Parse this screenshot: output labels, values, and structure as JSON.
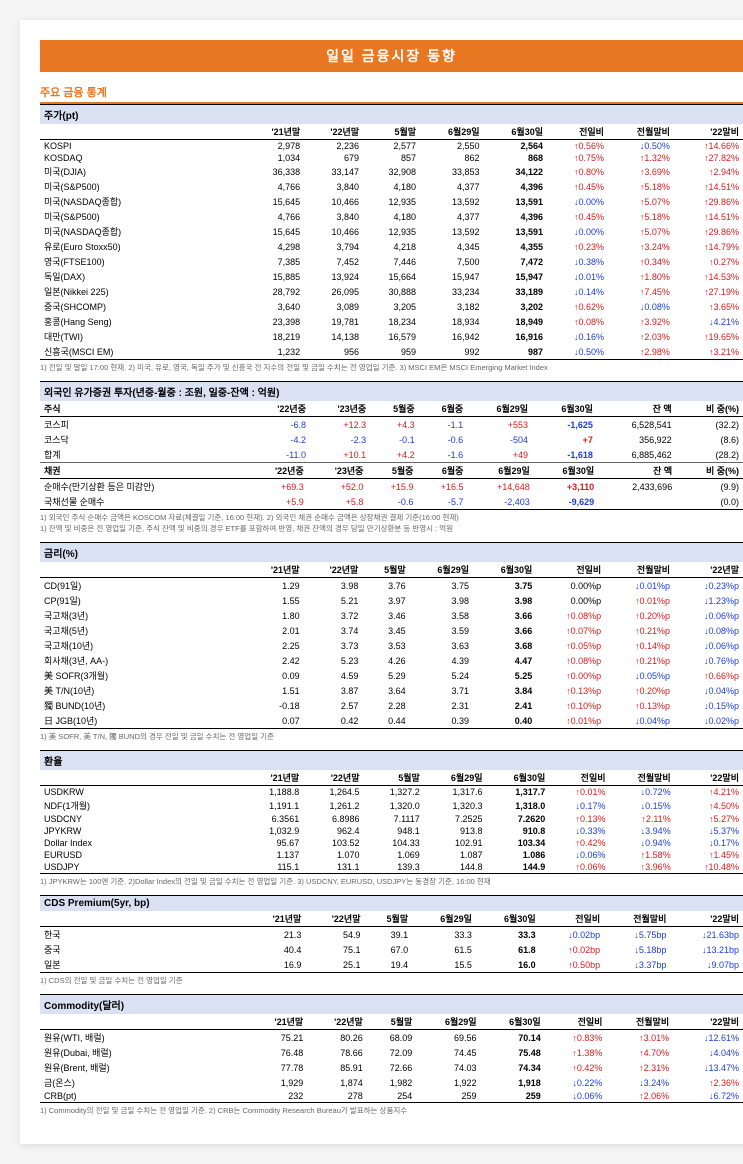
{
  "page_title": "일일 금융시장 동향",
  "sec1_title": "주요 금융 통계",
  "colors": {
    "accent": "#e87722",
    "header_bg": "#d9e1f2",
    "up": "#d91c1c",
    "down": "#1c3ed9"
  },
  "t1": {
    "title": "주가(pt)",
    "cols": [
      "'21년말",
      "'22년말",
      "5월말",
      "6월29일",
      "6월30일",
      "전일비",
      "전월말비",
      "'22말비"
    ],
    "rows": [
      [
        "KOSPI",
        "2,978",
        "2,236",
        "2,577",
        "2,550",
        "2,564",
        "↑0.56%",
        "↓0.50%",
        "↑14.66%"
      ],
      [
        "KOSDAQ",
        "1,034",
        "679",
        "857",
        "862",
        "868",
        "↑0.75%",
        "↑1.32%",
        "↑27.82%"
      ],
      [
        "미국(DJIA)",
        "36,338",
        "33,147",
        "32,908",
        "33,853",
        "34,122",
        "↑0.80%",
        "↑3.69%",
        "↑2.94%"
      ],
      [
        "미국(S&P500)",
        "4,766",
        "3,840",
        "4,180",
        "4,377",
        "4,396",
        "↑0.45%",
        "↑5.18%",
        "↑14.51%"
      ],
      [
        "미국(NASDAQ종합)",
        "15,645",
        "10,466",
        "12,935",
        "13,592",
        "13,591",
        "↓0.00%",
        "↑5.07%",
        "↑29.86%"
      ],
      [
        "미국(S&P500)",
        "4,766",
        "3,840",
        "4,180",
        "4,377",
        "4,396",
        "↑0.45%",
        "↑5.18%",
        "↑14.51%"
      ],
      [
        "미국(NASDAQ종합)",
        "15,645",
        "10,466",
        "12,935",
        "13,592",
        "13,591",
        "↓0.00%",
        "↑5.07%",
        "↑29.86%"
      ],
      [
        "유로(Euro Stoxx50)",
        "4,298",
        "3,794",
        "4,218",
        "4,345",
        "4,355",
        "↑0.23%",
        "↑3.24%",
        "↑14.79%"
      ],
      [
        "영국(FTSE100)",
        "7,385",
        "7,452",
        "7,446",
        "7,500",
        "7,472",
        "↓0.38%",
        "↑0.34%",
        "↑0.27%"
      ],
      [
        "독일(DAX)",
        "15,885",
        "13,924",
        "15,664",
        "15,947",
        "15,947",
        "↓0.01%",
        "↑1.80%",
        "↑14.53%"
      ],
      [
        "일본(Nikkei 225)",
        "28,792",
        "26,095",
        "30,888",
        "33,234",
        "33,189",
        "↓0.14%",
        "↑7.45%",
        "↑27.19%"
      ],
      [
        "중국(SHCOMP)",
        "3,640",
        "3,089",
        "3,205",
        "3,182",
        "3,202",
        "↑0.62%",
        "↓0.08%",
        "↑3.65%"
      ],
      [
        "홍콩(Hang Seng)",
        "23,398",
        "19,781",
        "18,234",
        "18,934",
        "18,949",
        "↑0.08%",
        "↑3.92%",
        "↓4.21%"
      ],
      [
        "대만(TWI)",
        "18,219",
        "14,138",
        "16,579",
        "16,942",
        "16,916",
        "↓0.16%",
        "↑2.03%",
        "↑19.65%"
      ],
      [
        "신흥국(MSCI EM)",
        "1,232",
        "956",
        "959",
        "992",
        "987",
        "↓0.50%",
        "↑2.98%",
        "↑3.21%"
      ]
    ],
    "foot": "1) 전일 및 말일 17:00 현재. 2) 미국, 유로, 영국, 독일 주가 및 신흥국 전 지수의 전일 및 금일 수치는 전 영업일 기준. 3) MSCI EM은 MSCI Emerging Market Index"
  },
  "t2": {
    "title": "외국인 유가증권 투자(년중-월중 : 조원, 일중-잔액 : 억원)",
    "cols1": [
      "주식",
      "'22년중",
      "'23년중",
      "5월중",
      "6월중",
      "6월29일",
      "6월30일",
      "잔 액",
      "비 중(%)"
    ],
    "rows1": [
      [
        "코스피",
        "-6.8",
        "+12.3",
        "+4.3",
        "-1.1",
        "+553",
        "-1,625",
        "6,528,541",
        "(32.2)"
      ],
      [
        "코스닥",
        "-4.2",
        "-2.3",
        "-0.1",
        "-0.6",
        "-504",
        "+7",
        "356,922",
        "(8.6)"
      ],
      [
        "합계",
        "-11.0",
        "+10.1",
        "+4.2",
        "-1.6",
        "+49",
        "-1,618",
        "6,885,462",
        "(28.2)"
      ]
    ],
    "cols2": [
      "채권",
      "'22년중",
      "'23년중",
      "5월중",
      "6월중",
      "6월29일",
      "6월30일",
      "잔 액",
      "비 중(%)"
    ],
    "rows2": [
      [
        "순매수(만기상환 등은 미감안)",
        "+69.3",
        "+52.0",
        "+15.9",
        "+16.5",
        "+14,648",
        "+3,110",
        "2,433,696",
        "(9.9)"
      ],
      [
        "국채선물 순매수",
        "+5.9",
        "+5.8",
        "-0.6",
        "-5.7",
        "-2,403",
        "-9,629",
        "",
        "(0.0)"
      ]
    ],
    "foot": "1) 외국인 주식 순매수 금액은 KOSCOM 자료(체결일 기준, 16:00 현재). 2) 외국인 채권 순매수 금액은 상장채권 결제 기준(16:00 현재)\n1) 잔액 및 비중은 전 영업일 기준, 주식 잔액 및 비중의 경우 ETF를 포함하여 반영, 채권 잔액의 경우 당일 만기상환분 등 반영시 :                                   억원"
  },
  "t3": {
    "title": "금리(%)",
    "cols": [
      "'21년말",
      "'22년말",
      "5월말",
      "6월29일",
      "6월30일",
      "전일비",
      "전월말비",
      "'22년말"
    ],
    "rows": [
      [
        "CD(91일)",
        "1.29",
        "3.98",
        "3.76",
        "3.75",
        "3.75",
        "0.00%p",
        "↓0.01%p",
        "↓0.23%p"
      ],
      [
        "CP(91일)",
        "1.55",
        "5.21",
        "3.97",
        "3.98",
        "3.98",
        "0.00%p",
        "↑0.01%p",
        "↓1.23%p"
      ],
      [
        "국고채(3년)",
        "1.80",
        "3.72",
        "3.46",
        "3.58",
        "3.66",
        "↑0.08%p",
        "↑0.20%p",
        "↓0.06%p"
      ],
      [
        "국고채(5년)",
        "2.01",
        "3.74",
        "3.45",
        "3.59",
        "3.66",
        "↑0.07%p",
        "↑0.21%p",
        "↓0.08%p"
      ],
      [
        "국고채(10년)",
        "2.25",
        "3.73",
        "3.53",
        "3.63",
        "3.68",
        "↑0.05%p",
        "↑0.14%p",
        "↓0.06%p"
      ],
      [
        "회사채(3년, AA-)",
        "2.42",
        "5.23",
        "4.26",
        "4.39",
        "4.47",
        "↑0.08%p",
        "↑0.21%p",
        "↓0.76%p"
      ],
      [
        "美 SOFR(3개월)",
        "0.09",
        "4.59",
        "5.29",
        "5.24",
        "5.25",
        "↑0.00%p",
        "↓0.05%p",
        "↑0.66%p"
      ],
      [
        "美 T/N(10년)",
        "1.51",
        "3.87",
        "3.64",
        "3.71",
        "3.84",
        "↑0.13%p",
        "↑0.20%p",
        "↓0.04%p"
      ],
      [
        "獨 BUND(10년)",
        "-0.18",
        "2.57",
        "2.28",
        "2.31",
        "2.41",
        "↑0.10%p",
        "↑0.13%p",
        "↓0.15%p"
      ],
      [
        "日 JGB(10년)",
        "0.07",
        "0.42",
        "0.44",
        "0.39",
        "0.40",
        "↑0.01%p",
        "↓0.04%p",
        "↓0.02%p"
      ]
    ],
    "foot": "1) 美 SOFR, 美 T/N, 獨 BUND의 경우 전일 및 금일 수치는 전 영업일 기준"
  },
  "t4": {
    "title": "환율",
    "cols": [
      "'21년말",
      "'22년말",
      "5월말",
      "6월29일",
      "6월30일",
      "전일비",
      "전월말비",
      "'22말비"
    ],
    "rows": [
      [
        "USDKRW",
        "1,188.8",
        "1,264.5",
        "1,327.2",
        "1,317.6",
        "1,317.7",
        "↑0.01%",
        "↓0.72%",
        "↑4.21%"
      ],
      [
        " NDF(1개월)",
        "1,191.1",
        "1,261.2",
        "1,320.0",
        "1,320.3",
        "1,318.0",
        "↓0.17%",
        "↓0.15%",
        "↑4.50%"
      ],
      [
        "USDCNY",
        "6.3561",
        "6.8986",
        "7.1117",
        "7.2525",
        "7.2620",
        "↑0.13%",
        "↑2.11%",
        "↑5.27%"
      ],
      [
        "JPYKRW",
        "1,032.9",
        "962.4",
        "948.1",
        "913.8",
        "910.8",
        "↓0.33%",
        "↓3.94%",
        "↓5.37%"
      ],
      [
        "Dollar Index",
        "95.67",
        "103.52",
        "104.33",
        "102.91",
        "103.34",
        "↑0.42%",
        "↓0.94%",
        "↓0.17%"
      ],
      [
        "EURUSD",
        "1.137",
        "1.070",
        "1.069",
        "1.087",
        "1.086",
        "↓0.06%",
        "↑1.58%",
        "↑1.45%"
      ],
      [
        "USDJPY",
        "115.1",
        "131.1",
        "139.3",
        "144.8",
        "144.9",
        "↑0.06%",
        "↑3.96%",
        "↑10.48%"
      ]
    ],
    "foot": "1) JPYKRW는 100엔 기준. 2)Dollar Index의 전일 및 금일 수치는 전 영업일 기준. 3) USDCNY, EURUSD, USDJPY는 동경장 기준, 16:00 현재"
  },
  "t5": {
    "title": "CDS Premium(5yr, bp)",
    "cols": [
      "'21년말",
      "'22년말",
      "5월말",
      "6월29일",
      "6월30일",
      "전일비",
      "전월말비",
      "'22말비"
    ],
    "rows": [
      [
        "한국",
        "21.3",
        "54.9",
        "39.1",
        "33.3",
        "33.3",
        "↓0.02bp",
        "↓5.75bp",
        "↓21.63bp"
      ],
      [
        "중국",
        "40.4",
        "75.1",
        "67.0",
        "61.5",
        "61.8",
        "↑0.02bp",
        "↓5.18bp",
        "↓13.21bp"
      ],
      [
        "일본",
        "16.9",
        "25.1",
        "19.4",
        "15.5",
        "16.0",
        "↑0.50bp",
        "↓3.37bp",
        "↓9.07bp"
      ]
    ],
    "foot": "1) CDS의 전일 및 금일 수치는 전 영업일 기준"
  },
  "t6": {
    "title": "Commodity(달러)",
    "cols": [
      "'21년말",
      "'22년말",
      "5월말",
      "6월29일",
      "6월30일",
      "전일비",
      "전월말비",
      "'22말비"
    ],
    "rows": [
      [
        "원유(WTI, 배럴)",
        "75.21",
        "80.26",
        "68.09",
        "69.56",
        "70.14",
        "↑0.83%",
        "↑3.01%",
        "↓12.61%"
      ],
      [
        "원유(Dubai, 배럴)",
        "76.48",
        "78.66",
        "72.09",
        "74.45",
        "75.48",
        "↑1.38%",
        "↑4.70%",
        "↓4.04%"
      ],
      [
        "원유(Brent, 배럴)",
        "77.78",
        "85.91",
        "72.66",
        "74.03",
        "74.34",
        "↑0.42%",
        "↑2.31%",
        "↓13.47%"
      ],
      [
        "금(온스)",
        "1,929",
        "1,874",
        "1,982",
        "1,922",
        "1,918",
        "↓0.22%",
        "↓3.24%",
        "↑2.36%"
      ],
      [
        "CRB(pt)",
        "232",
        "278",
        "254",
        "259",
        "259",
        "↓0.06%",
        "↑2.06%",
        "↓6.72%"
      ]
    ],
    "foot": "1) Commodity의 전일 및 금일 수치는 전 영업일 기준. 2) CRB는 Commodity Research Bureau가 발표하는 상품지수"
  }
}
